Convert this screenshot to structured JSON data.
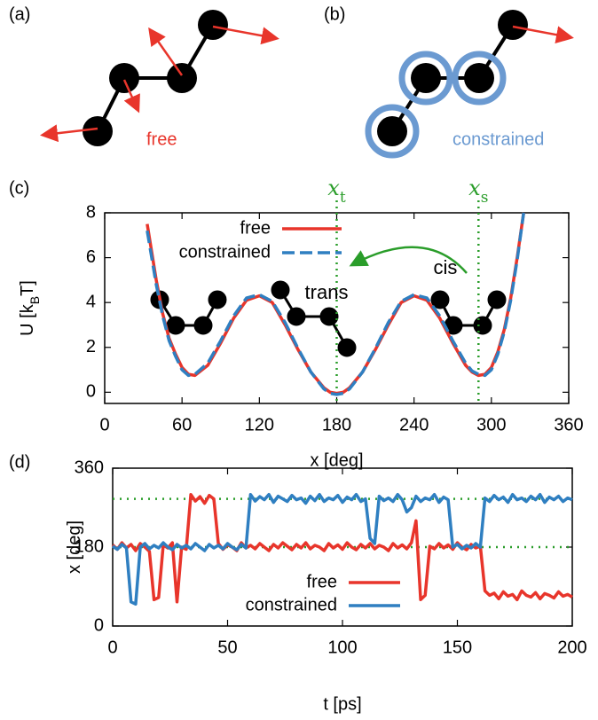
{
  "diagrams": [
    {
      "label": "(a)",
      "caption": "free"
    },
    {
      "label": "(b)",
      "caption": "constrained"
    }
  ],
  "chart_data": [
    {
      "type": "line",
      "panel_label": "(c)",
      "xlabel": "x [deg]",
      "ylabel": [
        "U [k",
        "B",
        "T]"
      ],
      "xlim": [
        0,
        360
      ],
      "xticks": [
        0,
        60,
        120,
        180,
        240,
        300,
        360
      ],
      "ylim": [
        -0.5,
        8
      ],
      "yticks": [
        0,
        2,
        4,
        6,
        8
      ],
      "x": [
        33,
        40,
        45,
        50,
        55,
        60,
        65,
        70,
        80,
        90,
        100,
        110,
        120,
        130,
        140,
        150,
        160,
        170,
        175,
        180,
        185,
        190,
        200,
        210,
        220,
        230,
        240,
        250,
        260,
        270,
        280,
        285,
        290,
        295,
        300,
        305,
        310,
        315,
        320,
        325
      ],
      "series": [
        {
          "name": "free",
          "color": "#e8352b",
          "dash": false,
          "values": [
            7.5,
            5.0,
            3.5,
            2.4,
            1.7,
            1.1,
            0.8,
            0.75,
            1.2,
            2.2,
            3.3,
            4.1,
            4.3,
            4.0,
            3.0,
            1.9,
            0.9,
            0.2,
            0.0,
            -0.05,
            0.0,
            0.2,
            0.9,
            1.9,
            3.0,
            4.0,
            4.3,
            4.1,
            3.3,
            2.2,
            1.2,
            0.9,
            0.75,
            0.8,
            1.1,
            1.8,
            2.8,
            4.2,
            6.0,
            8.0
          ]
        },
        {
          "name": "constrained",
          "color": "#2f7fc1",
          "dash": true,
          "values": [
            7.2,
            4.8,
            3.4,
            2.3,
            1.6,
            1.0,
            0.75,
            0.8,
            1.3,
            2.3,
            3.4,
            4.2,
            4.35,
            4.05,
            3.1,
            1.95,
            0.9,
            0.15,
            -0.05,
            -0.1,
            -0.05,
            0.15,
            0.9,
            1.95,
            3.1,
            4.05,
            4.35,
            4.2,
            3.4,
            2.3,
            1.3,
            0.95,
            0.8,
            0.75,
            1.0,
            1.7,
            2.7,
            4.1,
            5.9,
            8.0
          ]
        }
      ],
      "vlines": [
        {
          "value": 180,
          "label": [
            "x",
            "t"
          ]
        },
        {
          "value": 290,
          "label": [
            "x",
            "s"
          ]
        }
      ],
      "marker_color": "#2a9d2a",
      "annotations": [
        "trans",
        "cis"
      ]
    },
    {
      "type": "line",
      "panel_label": "(d)",
      "xlabel": "t [ps]",
      "ylabel": [
        "x [deg]"
      ],
      "xlim": [
        0,
        200
      ],
      "xticks": [
        0,
        50,
        100,
        150,
        200
      ],
      "ylim": [
        0,
        360
      ],
      "yticks": [
        0,
        180,
        360
      ],
      "x": [
        0,
        2,
        4,
        6,
        8,
        10,
        12,
        14,
        16,
        18,
        20,
        22,
        24,
        26,
        28,
        30,
        32,
        34,
        36,
        38,
        40,
        42,
        44,
        46,
        48,
        50,
        52,
        54,
        56,
        58,
        60,
        62,
        64,
        66,
        68,
        70,
        72,
        74,
        76,
        78,
        80,
        82,
        84,
        86,
        88,
        90,
        92,
        94,
        96,
        98,
        100,
        102,
        104,
        106,
        108,
        110,
        112,
        114,
        116,
        118,
        120,
        122,
        124,
        126,
        128,
        130,
        132,
        134,
        136,
        138,
        140,
        142,
        144,
        146,
        148,
        150,
        152,
        154,
        156,
        158,
        160,
        162,
        164,
        166,
        168,
        170,
        172,
        174,
        176,
        178,
        180,
        182,
        184,
        186,
        188,
        190,
        192,
        194,
        196,
        198,
        200
      ],
      "series": [
        {
          "name": "free",
          "color": "#e8352b",
          "dash": false,
          "values": [
            185,
            175,
            190,
            178,
            186,
            172,
            188,
            180,
            170,
            60,
            65,
            185,
            178,
            190,
            55,
            180,
            175,
            300,
            285,
            295,
            280,
            298,
            290,
            188,
            175,
            185,
            180,
            172,
            190,
            178,
            184,
            176,
            188,
            180,
            172,
            186,
            178,
            190,
            182,
            174,
            186,
            178,
            190,
            176,
            184,
            180,
            172,
            188,
            178,
            185,
            175,
            190,
            180,
            174,
            186,
            178,
            188,
            176,
            184,
            180,
            172,
            188,
            178,
            185,
            176,
            190,
            240,
            60,
            70,
            182,
            176,
            188,
            178,
            185,
            175,
            190,
            180,
            174,
            186,
            178,
            182,
            80,
            70,
            75,
            62,
            78,
            68,
            72,
            60,
            80,
            70,
            66,
            76,
            62,
            74,
            70,
            64,
            78,
            68,
            72,
            66
          ]
        },
        {
          "name": "constrained",
          "color": "#2f7fc1",
          "dash": false,
          "values": [
            182,
            175,
            186,
            178,
            55,
            50,
            180,
            188,
            176,
            184,
            178,
            190,
            180,
            174,
            186,
            178,
            184,
            176,
            188,
            180,
            172,
            186,
            178,
            184,
            176,
            188,
            180,
            174,
            186,
            178,
            300,
            285,
            295,
            288,
            300,
            282,
            296,
            290,
            284,
            298,
            288,
            292,
            280,
            296,
            286,
            300,
            284,
            292,
            288,
            298,
            282,
            294,
            288,
            300,
            284,
            290,
            200,
            188,
            296,
            286,
            292,
            284,
            300,
            288,
            260,
            270,
            296,
            284,
            292,
            288,
            300,
            282,
            294,
            288,
            180,
            186,
            176,
            184,
            178,
            188,
            180,
            292,
            284,
            298,
            288,
            294,
            282,
            300,
            288,
            292,
            284,
            296,
            288,
            300,
            282,
            294,
            288,
            296,
            284,
            292,
            288
          ]
        }
      ],
      "hlines": [
        290,
        180
      ],
      "marker_color": "#2a9d2a"
    }
  ]
}
